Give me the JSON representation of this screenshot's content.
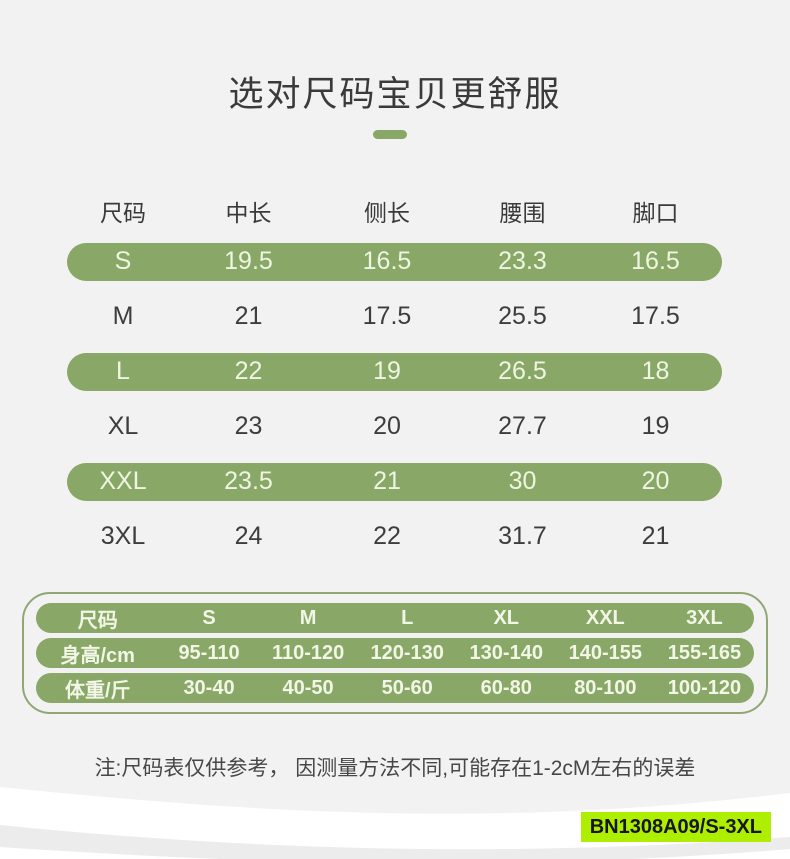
{
  "title": "选对尺码宝贝更舒服",
  "note": "注:尺码表仅供参考， 因测量方法不同,可能存在1-2cM左右的误差",
  "badge": "BN1308A09/S-3XL",
  "colors": {
    "page_bg": "#f2f2f3",
    "pill_green": "#89a766",
    "pill_text": "#eff5e3",
    "dark_text": "#3d3d3d",
    "box_border": "#8fa873",
    "badge_bg": "#aeee00",
    "badge_text": "#161616",
    "wave_white": "#ffffff",
    "wave_gray": "#ececed"
  },
  "size_table": {
    "headers": [
      "尺码",
      "中长",
      "侧长",
      "腰围",
      "脚口"
    ],
    "rows": [
      {
        "size": "S",
        "values": [
          "19.5",
          "16.5",
          "23.3",
          "16.5"
        ],
        "highlight": true
      },
      {
        "size": "M",
        "values": [
          "21",
          "17.5",
          "25.5",
          "17.5"
        ],
        "highlight": false
      },
      {
        "size": "L",
        "values": [
          "22",
          "19",
          "26.5",
          "18"
        ],
        "highlight": true
      },
      {
        "size": "XL",
        "values": [
          "23",
          "20",
          "27.7",
          "19"
        ],
        "highlight": false
      },
      {
        "size": "XXL",
        "values": [
          "23.5",
          "21",
          "30",
          "20"
        ],
        "highlight": true
      },
      {
        "size": "3XL",
        "values": [
          "24",
          "22",
          "31.7",
          "21"
        ],
        "highlight": false
      }
    ]
  },
  "fit_table": {
    "rows": [
      [
        "尺码",
        "S",
        "M",
        "L",
        "XL",
        "XXL",
        "3XL"
      ],
      [
        "身高/cm",
        "95-110",
        "110-120",
        "120-130",
        "130-140",
        "140-155",
        "155-165"
      ],
      [
        "体重/斤",
        "30-40",
        "40-50",
        "50-60",
        "60-80",
        "80-100",
        "100-120"
      ]
    ]
  },
  "chart_data": [
    {
      "type": "table",
      "title": "选对尺码宝贝更舒服",
      "columns": [
        "尺码",
        "中长",
        "侧长",
        "腰围",
        "脚口"
      ],
      "rows": [
        [
          "S",
          "19.5",
          "16.5",
          "23.3",
          "16.5"
        ],
        [
          "M",
          "21",
          "17.5",
          "25.5",
          "17.5"
        ],
        [
          "L",
          "22",
          "19",
          "26.5",
          "18"
        ],
        [
          "XL",
          "23",
          "20",
          "27.7",
          "19"
        ],
        [
          "XXL",
          "23.5",
          "21",
          "30",
          "20"
        ],
        [
          "3XL",
          "24",
          "22",
          "31.7",
          "21"
        ]
      ]
    },
    {
      "type": "table",
      "columns": [
        "尺码",
        "S",
        "M",
        "L",
        "XL",
        "XXL",
        "3XL"
      ],
      "rows": [
        [
          "身高/cm",
          "95-110",
          "110-120",
          "120-130",
          "130-140",
          "140-155",
          "155-165"
        ],
        [
          "体重/斤",
          "30-40",
          "40-50",
          "50-60",
          "60-80",
          "80-100",
          "100-120"
        ]
      ]
    }
  ]
}
